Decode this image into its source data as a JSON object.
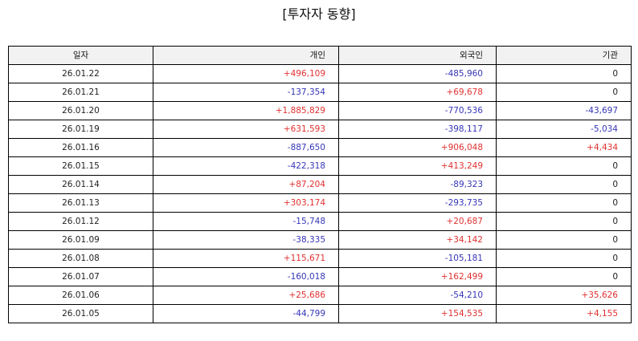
{
  "title": "[투자자 동향]",
  "columns": [
    "일자",
    "개인",
    "외국인",
    "기관"
  ],
  "colors": {
    "positive": "#e03131",
    "negative": "#3636b8",
    "neutral": "#222222"
  },
  "rows": [
    {
      "date": "26.01.22",
      "individual": "+496,109",
      "foreign": "-485,960",
      "institution": "0"
    },
    {
      "date": "26.01.21",
      "individual": "-137,354",
      "foreign": "+69,678",
      "institution": "0"
    },
    {
      "date": "26.01.20",
      "individual": "+1,885,829",
      "foreign": "-770,536",
      "institution": "-43,697"
    },
    {
      "date": "26.01.19",
      "individual": "+631,593",
      "foreign": "-398,117",
      "institution": "-5,034"
    },
    {
      "date": "26.01.16",
      "individual": "-887,650",
      "foreign": "+906,048",
      "institution": "+4,434"
    },
    {
      "date": "26.01.15",
      "individual": "-422,318",
      "foreign": "+413,249",
      "institution": "0"
    },
    {
      "date": "26.01.14",
      "individual": "+87,204",
      "foreign": "-89,323",
      "institution": "0"
    },
    {
      "date": "26.01.13",
      "individual": "+303,174",
      "foreign": "-293,735",
      "institution": "0"
    },
    {
      "date": "26.01.12",
      "individual": "-15,748",
      "foreign": "+20,687",
      "institution": "0"
    },
    {
      "date": "26.01.09",
      "individual": "-38,335",
      "foreign": "+34,142",
      "institution": "0"
    },
    {
      "date": "26.01.08",
      "individual": "+115,671",
      "foreign": "-105,181",
      "institution": "0"
    },
    {
      "date": "26.01.07",
      "individual": "-160,018",
      "foreign": "+162,499",
      "institution": "0"
    },
    {
      "date": "26.01.06",
      "individual": "+25,686",
      "foreign": "-54,210",
      "institution": "+35,626"
    },
    {
      "date": "26.01.05",
      "individual": "-44,799",
      "foreign": "+154,535",
      "institution": "+4,155"
    }
  ]
}
